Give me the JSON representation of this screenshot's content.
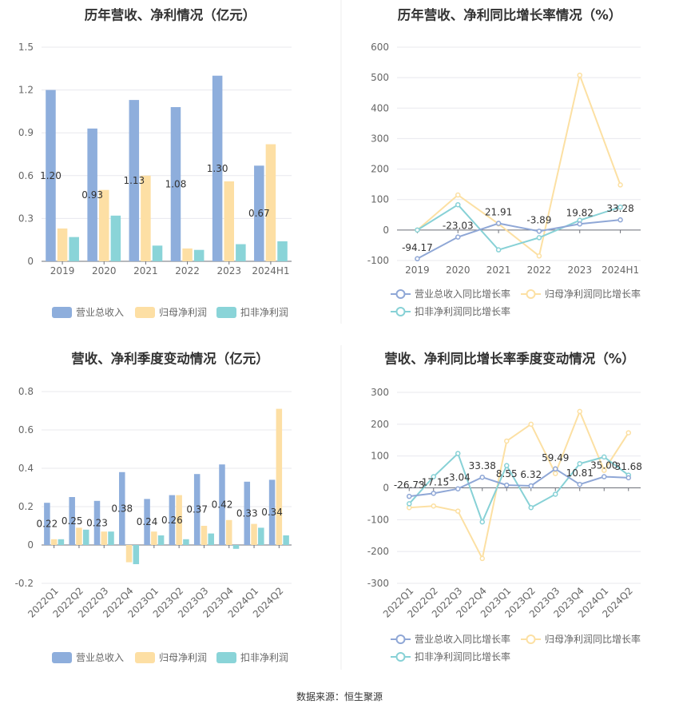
{
  "source": "数据来源：恒生聚源",
  "colors": {
    "revenue": "#8eaedc",
    "net_profit": "#fddfa4",
    "deducted_profit": "#8ad4d8",
    "revenue_line": "#8fa7d6",
    "net_line": "#fce0a3",
    "deducted_line": "#87d1d6"
  },
  "chart_data": [
    {
      "type": "bar",
      "title": "历年营收、净利情况（亿元）",
      "categories": [
        "2019",
        "2020",
        "2021",
        "2022",
        "2023",
        "2024H1"
      ],
      "ylim": [
        0,
        1.5
      ],
      "yticks": [
        "0",
        "0.3",
        "0.6",
        "0.9",
        "1.2",
        "1.5"
      ],
      "grid": true,
      "legend_position": "bottom",
      "data_labels": [
        "1.20",
        "0.93",
        "1.13",
        "1.08",
        "1.30",
        "0.67"
      ],
      "series": [
        {
          "name": "营业总收入",
          "values": [
            1.2,
            0.93,
            1.13,
            1.08,
            1.3,
            0.67
          ]
        },
        {
          "name": "归母净利润",
          "values": [
            0.23,
            0.5,
            0.6,
            0.09,
            0.56,
            0.82
          ]
        },
        {
          "name": "扣非净利润",
          "values": [
            0.17,
            0.32,
            0.11,
            0.08,
            0.12,
            0.14
          ]
        }
      ]
    },
    {
      "type": "line",
      "title": "历年营收、净利同比增长率情况（%）",
      "categories": [
        "2019",
        "2020",
        "2021",
        "2022",
        "2023",
        "2024H1"
      ],
      "ylim": [
        -100,
        600
      ],
      "yticks": [
        "-100",
        "0",
        "100",
        "200",
        "300",
        "400",
        "500",
        "600"
      ],
      "grid": true,
      "legend_position": "bottom",
      "data_labels": [
        "-94.17",
        "-23.03",
        "21.91",
        "-3.89",
        "19.82",
        "33.28"
      ],
      "series": [
        {
          "name": "营业总收入同比增长率",
          "values": [
            -94.17,
            -23.03,
            21.91,
            -3.89,
            19.82,
            33.28
          ]
        },
        {
          "name": "归母净利润同比增长率",
          "values": [
            0,
            115,
            20,
            -85,
            508,
            148
          ]
        },
        {
          "name": "扣非净利润同比增长率",
          "values": [
            0,
            83,
            -65,
            -25,
            32,
            75
          ]
        }
      ]
    },
    {
      "type": "bar",
      "title": "营收、净利季度变动情况（亿元）",
      "categories": [
        "2022Q1",
        "2022Q2",
        "2022Q3",
        "2022Q4",
        "2023Q1",
        "2023Q2",
        "2023Q3",
        "2023Q4",
        "2024Q1",
        "2024Q2"
      ],
      "ylim": [
        -0.2,
        0.8
      ],
      "yticks": [
        "-0.2",
        "0",
        "0.2",
        "0.4",
        "0.6",
        "0.8"
      ],
      "grid": true,
      "legend_position": "bottom",
      "data_labels": [
        "0.22",
        "0.25",
        "0.23",
        "0.38",
        "0.24",
        "0.26",
        "0.37",
        "0.42",
        "0.33",
        "0.34"
      ],
      "series": [
        {
          "name": "营业总收入",
          "values": [
            0.22,
            0.25,
            0.23,
            0.38,
            0.24,
            0.26,
            0.37,
            0.42,
            0.33,
            0.34
          ]
        },
        {
          "name": "归母净利润",
          "values": [
            0.03,
            0.09,
            0.07,
            -0.09,
            0.07,
            0.26,
            0.1,
            0.13,
            0.11,
            0.71
          ]
        },
        {
          "name": "扣非净利润",
          "values": [
            0.03,
            0.08,
            0.07,
            -0.1,
            0.05,
            0.03,
            0.06,
            -0.02,
            0.09,
            0.05
          ]
        }
      ]
    },
    {
      "type": "line",
      "title": "营收、净利同比增长率季度变动情况（%）",
      "categories": [
        "2022Q1",
        "2022Q2",
        "2022Q3",
        "2022Q4",
        "2023Q1",
        "2023Q2",
        "2023Q3",
        "2023Q4",
        "2024Q1",
        "2024Q2"
      ],
      "ylim": [
        -300,
        300
      ],
      "yticks": [
        "-300",
        "-200",
        "-100",
        "0",
        "100",
        "200",
        "300"
      ],
      "grid": true,
      "legend_position": "bottom",
      "data_labels": [
        "-26.73",
        "-17.15",
        "-3.04",
        "33.38",
        "8.55",
        "6.32",
        "59.49",
        "10.81",
        "35.00",
        "31.68"
      ],
      "series": [
        {
          "name": "营业总收入同比增长率",
          "values": [
            -26.73,
            -17.15,
            -3.04,
            33.38,
            8.55,
            6.32,
            59.49,
            10.81,
            35.0,
            31.68
          ]
        },
        {
          "name": "归母净利润同比增长率",
          "values": [
            -62,
            -57,
            -73,
            -222,
            147,
            200,
            45,
            240,
            55,
            173
          ]
        },
        {
          "name": "扣非净利润同比增长率",
          "values": [
            -50,
            35,
            108,
            -107,
            70,
            -62,
            -20,
            76,
            97,
            40
          ]
        }
      ]
    }
  ]
}
